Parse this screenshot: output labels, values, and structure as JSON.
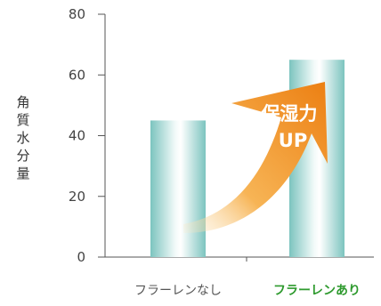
{
  "chart_data": {
    "type": "bar",
    "ylabel": "角質水分量",
    "xlabel": "",
    "title": "",
    "ylim": [
      0,
      80
    ],
    "yticks": [
      0,
      20,
      40,
      60,
      80
    ],
    "grid": false,
    "categories": [
      "フラーレンなし",
      "フラーレンあり"
    ],
    "values": [
      45,
      65
    ],
    "category_colors": [
      "#555555",
      "#2e9a2e"
    ],
    "bar_color": "#8ecdc8",
    "annotation": {
      "line1": "保湿力",
      "line2": "UP",
      "color": "#f08c1a"
    }
  }
}
